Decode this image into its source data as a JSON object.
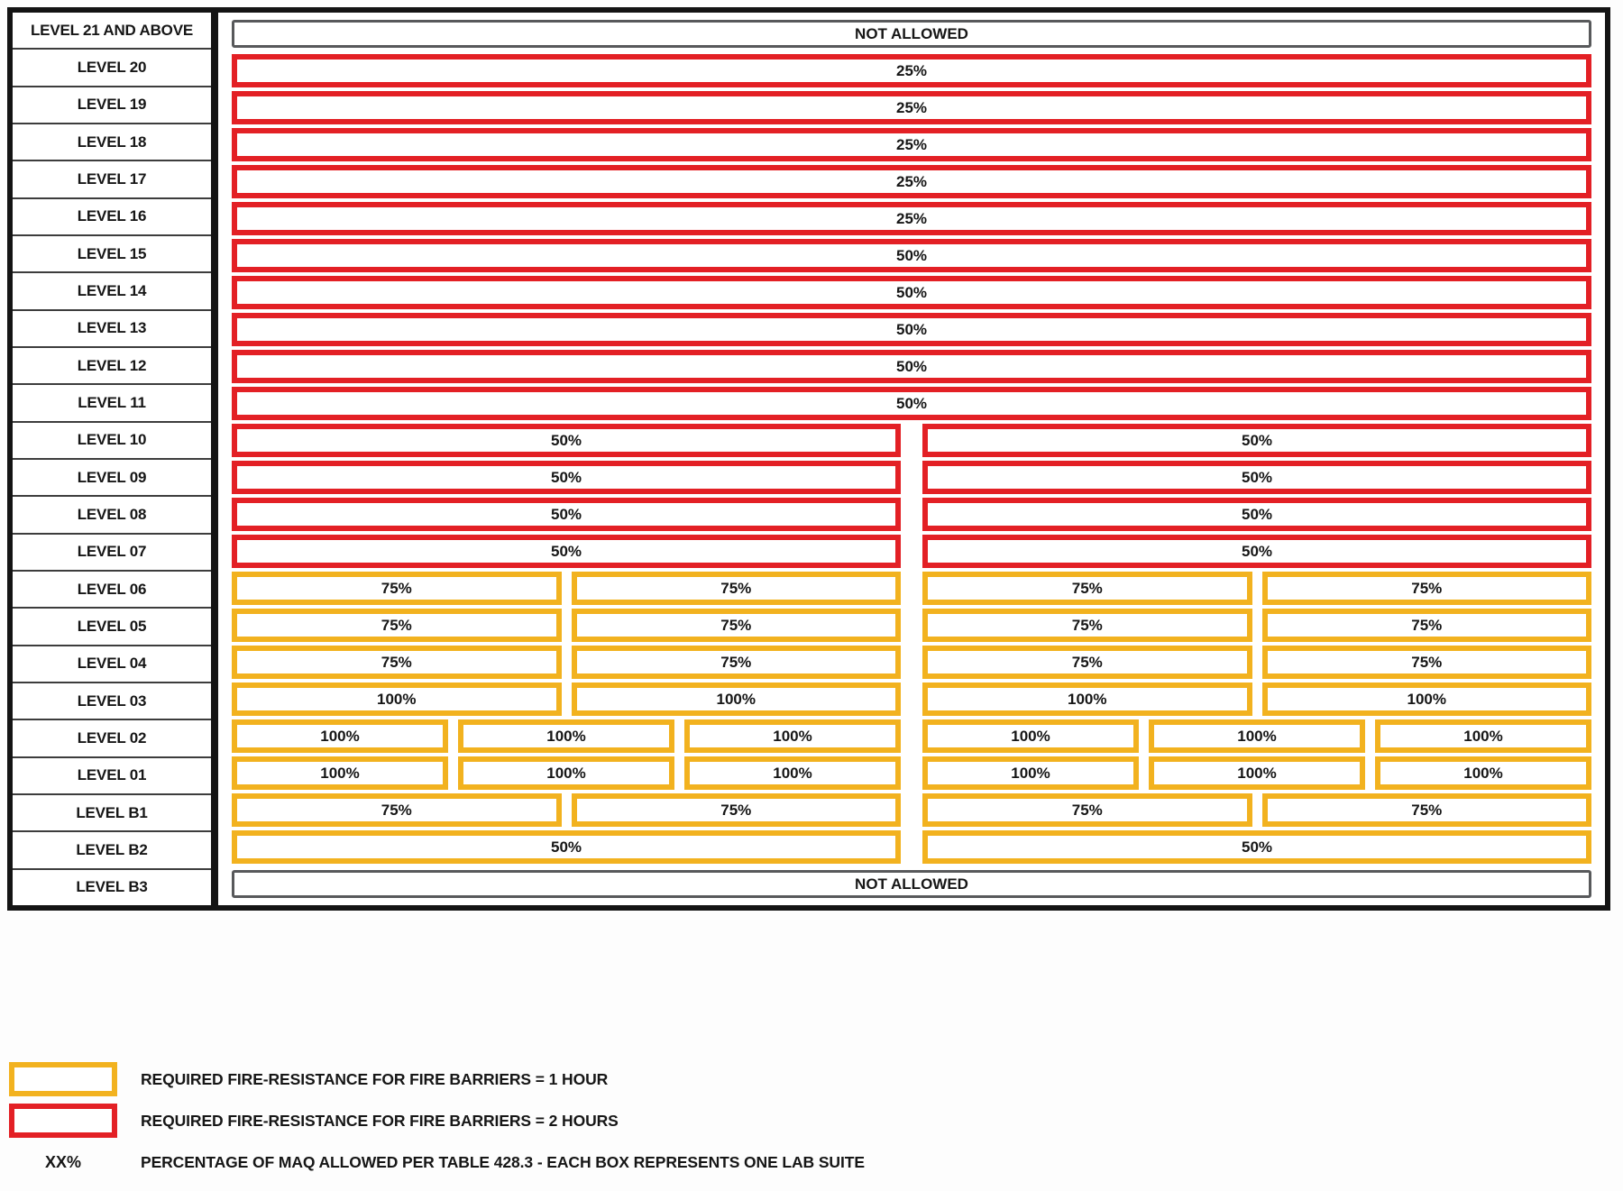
{
  "diagram": {
    "title": "lab-suite-stacking-diagram",
    "colors": {
      "one_hour_barrier": "#F2B21F",
      "two_hour_barrier": "#E32025",
      "not_allowed_border": "#58595B",
      "grid_border": "#141414"
    },
    "rows": [
      {
        "label": "LEVEL 21 AND ABOVE",
        "style": "gray",
        "values": [
          "NOT ALLOWED"
        ]
      },
      {
        "label": "LEVEL 20",
        "style": "red",
        "values": [
          "25%"
        ]
      },
      {
        "label": "LEVEL 19",
        "style": "red",
        "values": [
          "25%"
        ]
      },
      {
        "label": "LEVEL 18",
        "style": "red",
        "values": [
          "25%"
        ]
      },
      {
        "label": "LEVEL 17",
        "style": "red",
        "values": [
          "25%"
        ]
      },
      {
        "label": "LEVEL 16",
        "style": "red",
        "values": [
          "25%"
        ]
      },
      {
        "label": "LEVEL 15",
        "style": "red",
        "values": [
          "50%"
        ]
      },
      {
        "label": "LEVEL 14",
        "style": "red",
        "values": [
          "50%"
        ]
      },
      {
        "label": "LEVEL 13",
        "style": "red",
        "values": [
          "50%"
        ]
      },
      {
        "label": "LEVEL 12",
        "style": "red",
        "values": [
          "50%"
        ]
      },
      {
        "label": "LEVEL 11",
        "style": "red",
        "values": [
          "50%"
        ]
      },
      {
        "label": "LEVEL 10",
        "style": "red",
        "values": [
          "50%",
          "50%"
        ]
      },
      {
        "label": "LEVEL 09",
        "style": "red",
        "values": [
          "50%",
          "50%"
        ]
      },
      {
        "label": "LEVEL 08",
        "style": "red",
        "values": [
          "50%",
          "50%"
        ]
      },
      {
        "label": "LEVEL 07",
        "style": "red",
        "values": [
          "50%",
          "50%"
        ]
      },
      {
        "label": "LEVEL 06",
        "style": "yellow",
        "values": [
          "75%",
          "75%",
          "75%",
          "75%"
        ]
      },
      {
        "label": "LEVEL 05",
        "style": "yellow",
        "values": [
          "75%",
          "75%",
          "75%",
          "75%"
        ]
      },
      {
        "label": "LEVEL 04",
        "style": "yellow",
        "values": [
          "75%",
          "75%",
          "75%",
          "75%"
        ]
      },
      {
        "label": "LEVEL 03",
        "style": "yellow",
        "values": [
          "100%",
          "100%",
          "100%",
          "100%"
        ]
      },
      {
        "label": "LEVEL 02",
        "style": "yellow",
        "values": [
          "100%",
          "100%",
          "100%",
          "100%",
          "100%",
          "100%"
        ]
      },
      {
        "label": "LEVEL 01",
        "style": "yellow",
        "values": [
          "100%",
          "100%",
          "100%",
          "100%",
          "100%",
          "100%"
        ]
      },
      {
        "label": "LEVEL B1",
        "style": "yellow",
        "values": [
          "75%",
          "75%",
          "75%",
          "75%"
        ]
      },
      {
        "label": "LEVEL B2",
        "style": "yellow",
        "values": [
          "50%",
          "50%"
        ]
      },
      {
        "label": "LEVEL B3",
        "style": "gray",
        "values": [
          "NOT ALLOWED"
        ]
      }
    ],
    "legend": [
      {
        "key_type": "swatch",
        "swatch_style": "yellow",
        "label": "REQUIRED FIRE-RESISTANCE FOR FIRE BARRIERS = 1 HOUR"
      },
      {
        "key_type": "swatch",
        "swatch_style": "red",
        "label": "REQUIRED FIRE-RESISTANCE FOR FIRE BARRIERS = 2 HOURS"
      },
      {
        "key_type": "symbol",
        "symbol": "XX%",
        "label": "PERCENTAGE OF MAQ ALLOWED PER TABLE 428.3 - EACH BOX REPRESENTS ONE LAB SUITE"
      }
    ]
  }
}
